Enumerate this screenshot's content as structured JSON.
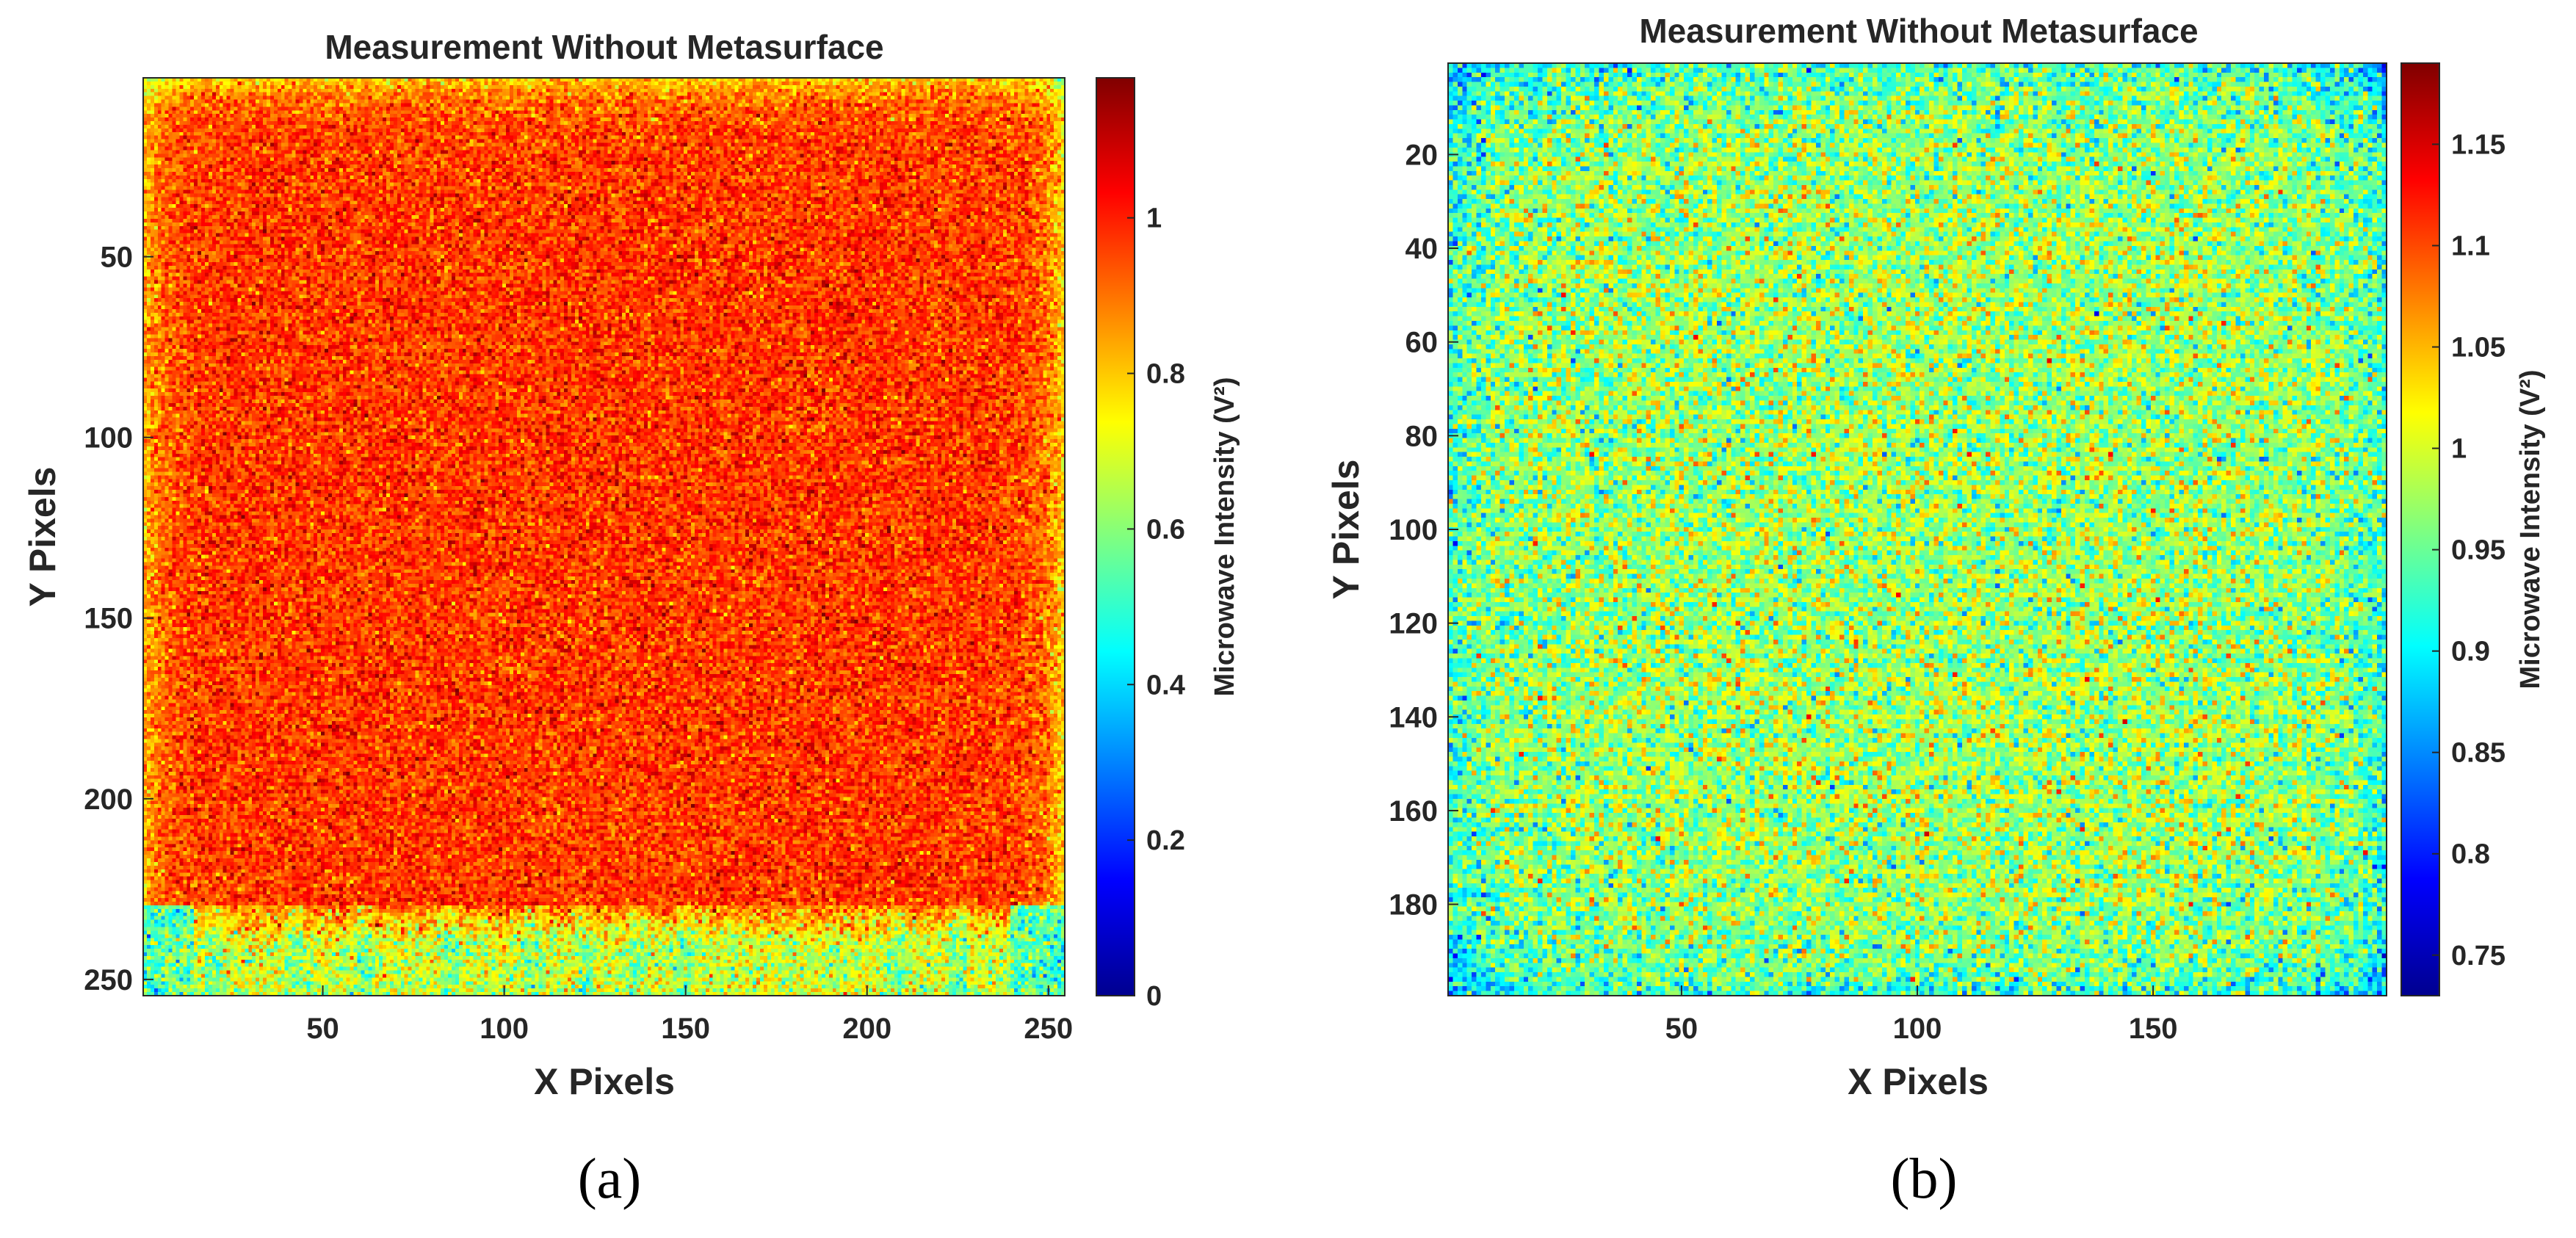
{
  "chart_data": [
    {
      "type": "heatmap",
      "title": "Measurement Without Metasurface",
      "xlabel": "X Pixels",
      "ylabel": "Y Pixels",
      "colorbar_label": "Microwave Intensity (V²)",
      "colormap": "jet",
      "grid_size": [
        254,
        254
      ],
      "xlim": [
        1,
        254
      ],
      "ylim": [
        1,
        254
      ],
      "y_direction": "down",
      "xticks": [
        50,
        100,
        150,
        200,
        250
      ],
      "yticks": [
        50,
        100,
        150,
        200,
        250
      ],
      "clim": [
        0,
        1.18
      ],
      "colorbar_ticks": [
        0,
        0.2,
        0.4,
        0.6,
        0.8,
        1
      ],
      "colorbar_tick_labels": [
        "0",
        "0.2",
        "0.4",
        "0.6",
        "0.8",
        "1"
      ],
      "field": {
        "interior_mean": 0.97,
        "interior_std": 0.07,
        "top_edge_mean": 0.8,
        "bottom_edge_mean": 0.68,
        "left_edge_mean": 0.82,
        "right_edge_mean": 0.78,
        "bottom_corner_mean": 0.52,
        "bottom_band_rows": [
          230,
          254
        ],
        "bottom_stripe_x_positions": [
          20,
          42,
          62,
          85,
          108,
          122,
          137,
          150,
          208,
          225
        ]
      },
      "caption": "(a)"
    },
    {
      "type": "heatmap",
      "title": "Measurement Without Metasurface",
      "xlabel": "X Pixels",
      "ylabel": "Y Pixels",
      "colorbar_label": "Microwave Intensity (V²)",
      "colormap": "jet",
      "grid_size": [
        199,
        199
      ],
      "xlim": [
        1,
        199
      ],
      "ylim": [
        1,
        199
      ],
      "y_direction": "down",
      "xticks": [
        50,
        100,
        150
      ],
      "yticks": [
        20,
        40,
        60,
        80,
        100,
        120,
        140,
        160,
        180
      ],
      "clim": [
        0.73,
        1.19
      ],
      "colorbar_ticks": [
        0.75,
        0.8,
        0.85,
        0.9,
        0.95,
        1,
        1.05,
        1.1,
        1.15
      ],
      "colorbar_tick_labels": [
        "0.75",
        "0.8",
        "0.85",
        "0.9",
        "0.95",
        "1",
        "1.05",
        "1.1",
        "1.15"
      ],
      "field": {
        "interior_mean": 0.975,
        "interior_std": 0.045,
        "edge_mean": 0.93,
        "corner_mean": 0.86
      },
      "caption": "(b)"
    }
  ]
}
